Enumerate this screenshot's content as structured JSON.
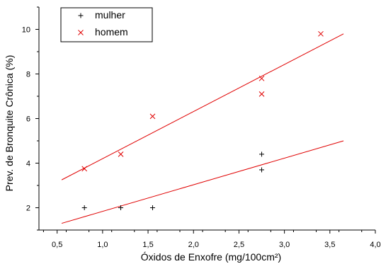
{
  "chart_data": {
    "type": "scatter",
    "title": "",
    "xlabel": "Óxidos de Enxofre (mg/100cm²)",
    "ylabel": "Prev. de Bronquite Crônica (%)",
    "xlim": [
      0.3,
      4.0
    ],
    "ylim": [
      1.0,
      11.0
    ],
    "x_ticks": [
      0.5,
      1.0,
      1.5,
      2.0,
      2.5,
      3.0,
      3.5,
      4.0
    ],
    "x_tick_labels": [
      "0,5",
      "1,0",
      "1,5",
      "2,0",
      "2,5",
      "3,0",
      "3,5",
      "4,0"
    ],
    "y_ticks": [
      2,
      4,
      6,
      8,
      10
    ],
    "y_tick_labels": [
      "2",
      "4",
      "6",
      "8",
      "10"
    ],
    "grid": false,
    "legend_position": "top-left",
    "series": [
      {
        "name": "mulher",
        "marker": "plus",
        "color": "#000000",
        "points": [
          [
            0.8,
            2.0
          ],
          [
            1.2,
            2.0
          ],
          [
            1.55,
            2.0
          ],
          [
            2.75,
            4.4
          ],
          [
            2.75,
            3.7
          ]
        ]
      },
      {
        "name": "homem",
        "marker": "x",
        "color": "#e00000",
        "points": [
          [
            0.8,
            3.75
          ],
          [
            1.2,
            4.4
          ],
          [
            1.55,
            6.1
          ],
          [
            2.75,
            7.8
          ],
          [
            2.75,
            7.1
          ],
          [
            3.4,
            9.8
          ]
        ]
      }
    ],
    "fit_lines": [
      {
        "series": "mulher",
        "color": "#e00000",
        "from": [
          0.55,
          1.3
        ],
        "to": [
          3.65,
          5.0
        ]
      },
      {
        "series": "homem",
        "color": "#e00000",
        "from": [
          0.55,
          3.25
        ],
        "to": [
          3.65,
          9.8
        ]
      }
    ]
  }
}
